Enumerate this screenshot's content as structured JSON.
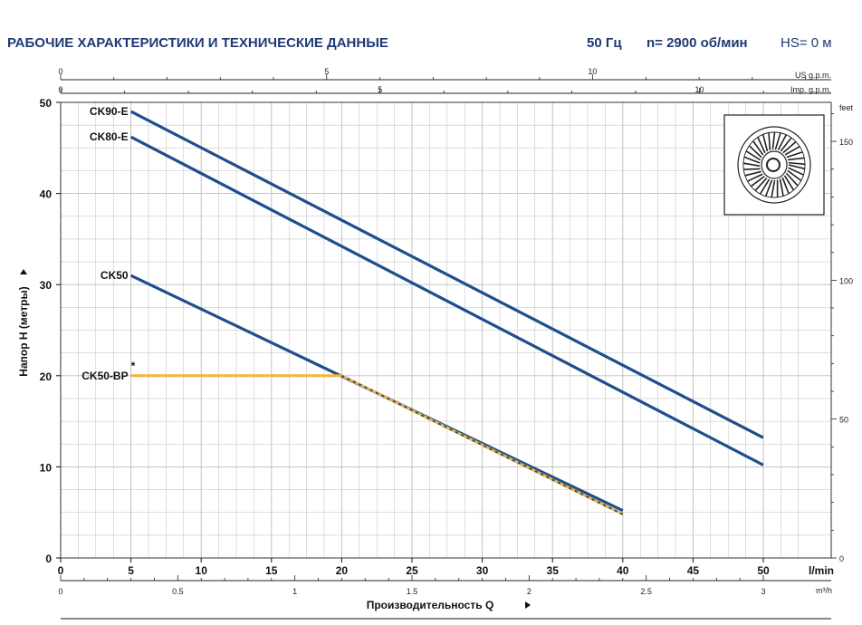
{
  "header": {
    "title": "РАБОЧИЕ ХАРАКТЕРИСТИКИ И ТЕХНИЧЕСКИЕ ДАННЫЕ",
    "freq": "50 Гц",
    "speed": "n= 2900 об/мин",
    "hs": "HS= 0 м"
  },
  "colors": {
    "curve": "#1f4e8c",
    "bp_curve": "#f2b43a",
    "grid": "#bdbdbd",
    "header_text": "#1f3a73"
  },
  "icon": {
    "name": "impeller-icon"
  },
  "chart_data": {
    "type": "line",
    "xlabel": "Производительность Q",
    "ylabel": "Напор Н (метры)",
    "x_unit": "l/min",
    "x2_unit": "m³/h",
    "top_axis_us_unit": "US g.p.m.",
    "top_axis_imp_unit": "Imp. g.p.m.",
    "right_axis_unit": "feet",
    "xlim": [
      0,
      50
    ],
    "ylim": [
      0,
      50
    ],
    "x_ticks": [
      0,
      5,
      10,
      15,
      20,
      25,
      30,
      35,
      40,
      45,
      50
    ],
    "y_ticks": [
      0,
      10,
      20,
      30,
      40,
      50
    ],
    "x2_ticks": [
      {
        "label": "0",
        "x": 0
      },
      {
        "label": "0.5",
        "x": 8.333
      },
      {
        "label": "1",
        "x": 16.667
      },
      {
        "label": "1.5",
        "x": 25
      },
      {
        "label": "2",
        "x": 33.333
      },
      {
        "label": "2.5",
        "x": 41.667
      },
      {
        "label": "3",
        "x": 50
      }
    ],
    "us_ticks": [
      {
        "label": "0",
        "x": 0
      },
      {
        "label": "5",
        "x": 18.93
      },
      {
        "label": "10",
        "x": 37.85
      }
    ],
    "imp_ticks": [
      {
        "label": "0",
        "x": 0
      },
      {
        "label": "5",
        "x": 22.73
      },
      {
        "label": "10",
        "x": 45.46
      }
    ],
    "feet_ticks": [
      {
        "label": "0",
        "y": 0
      },
      {
        "label": "50",
        "y": 15.24
      },
      {
        "label": "100",
        "y": 30.48
      },
      {
        "label": "150",
        "y": 45.72
      }
    ],
    "series": [
      {
        "name": "CK90-E",
        "x": [
          5,
          50
        ],
        "y": [
          49,
          13.2
        ],
        "style": "solid"
      },
      {
        "name": "CK80-E",
        "x": [
          5,
          50
        ],
        "y": [
          46.2,
          10.2
        ],
        "style": "solid"
      },
      {
        "name": "CK50",
        "x": [
          5,
          40
        ],
        "y": [
          31,
          5.2
        ],
        "style": "solid"
      },
      {
        "name": "CK50-BP",
        "x": [
          5,
          20,
          40
        ],
        "y": [
          20,
          20,
          4.8
        ],
        "style": "bp",
        "marker": "*"
      }
    ]
  }
}
